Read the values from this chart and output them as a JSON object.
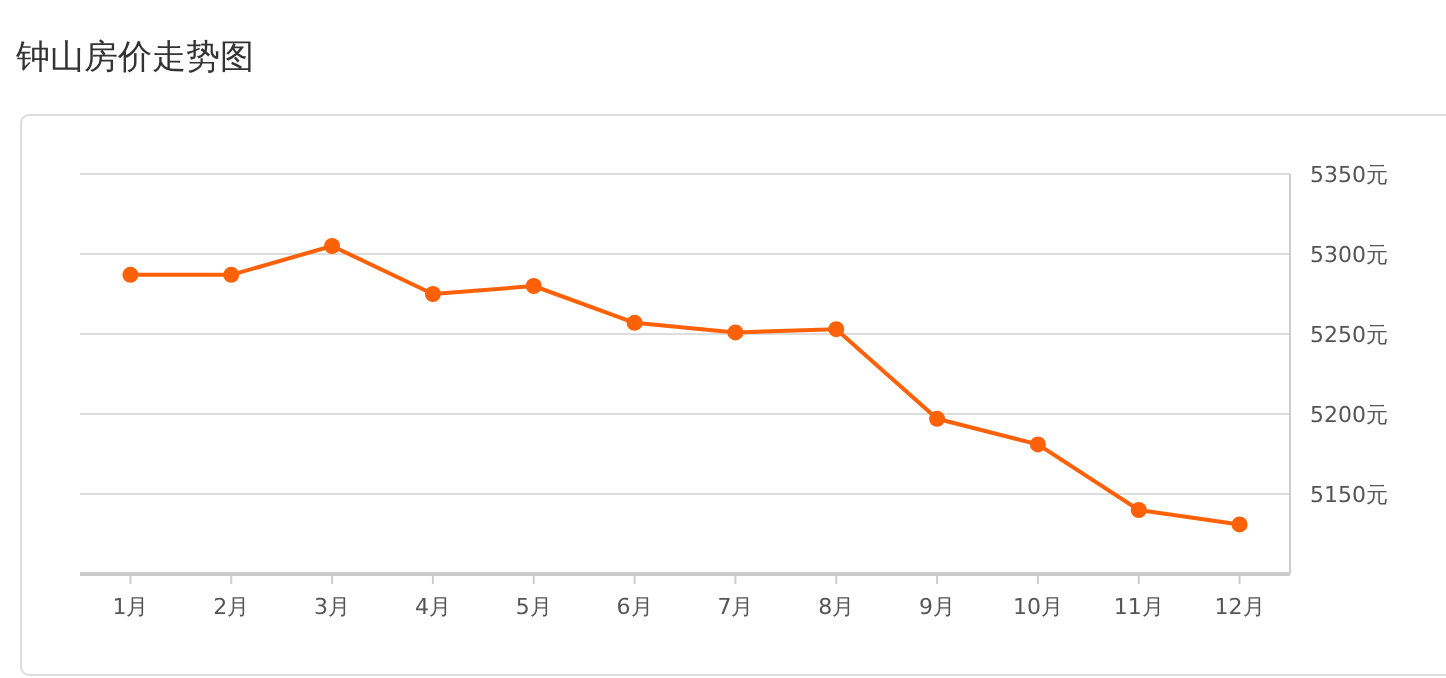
{
  "chart_data": {
    "type": "line",
    "title": "钟山房价走势图",
    "categories": [
      "1月",
      "2月",
      "3月",
      "4月",
      "5月",
      "6月",
      "7月",
      "8月",
      "9月",
      "10月",
      "11月",
      "12月"
    ],
    "series": [
      {
        "color": "#ff6108",
        "values": [
          5287,
          5287,
          5305,
          5275,
          5280,
          5257,
          5251,
          5253,
          5197,
          5181,
          5140,
          5131
        ]
      }
    ],
    "ylim": [
      5100,
      5350
    ],
    "yticks": [
      {
        "value": 5150,
        "label": "5150元"
      },
      {
        "value": 5200,
        "label": "5200元"
      },
      {
        "value": 5250,
        "label": "5250元"
      },
      {
        "value": 5300,
        "label": "5300元"
      },
      {
        "value": 5350,
        "label": "5350元"
      }
    ],
    "grid": "y",
    "marker": "circle",
    "line_style": "solid"
  }
}
